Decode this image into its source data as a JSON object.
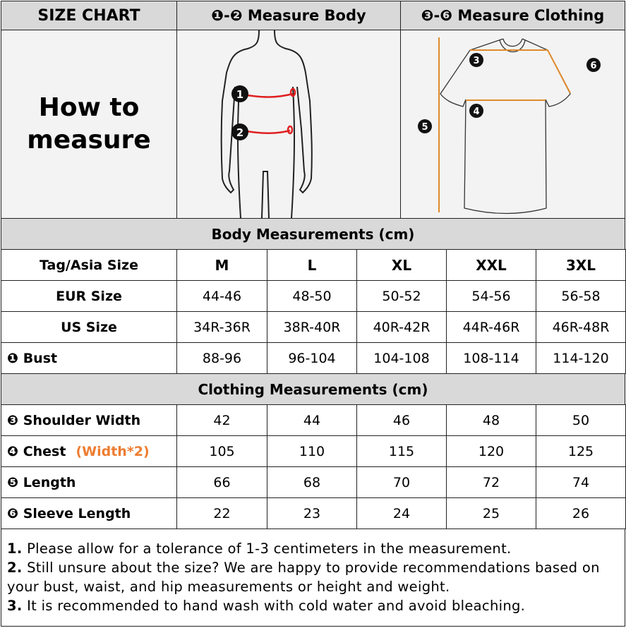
{
  "header": {
    "title": "SIZE CHART",
    "body_title": "❶-❷ Measure Body",
    "clothing_title": "❸-❻ Measure Clothing"
  },
  "how_to": {
    "line1": "How to",
    "line2": "measure"
  },
  "body_section": {
    "title": "Body Measurements (cm)",
    "rows": [
      {
        "label": "Tag/Asia Size",
        "values": [
          "M",
          "L",
          "XL",
          "XXL",
          "3XL"
        ]
      },
      {
        "label": "EUR Size",
        "values": [
          "44-46",
          "48-50",
          "50-52",
          "54-56",
          "56-58"
        ]
      },
      {
        "label": "US Size",
        "values": [
          "34R-36R",
          "38R-40R",
          "40R-42R",
          "44R-46R",
          "46R-48R"
        ]
      },
      {
        "label": "❶ Bust",
        "values": [
          "88-96",
          "96-104",
          "104-108",
          "108-114",
          "114-120"
        ]
      }
    ]
  },
  "clothing_section": {
    "title": "Clothing Measurements  (cm)",
    "rows": [
      {
        "label": "❸ Shoulder Width",
        "note": "",
        "values": [
          "42",
          "44",
          "46",
          "48",
          "50"
        ]
      },
      {
        "label": "❹ Chest",
        "note": "(Width*2)",
        "values": [
          "105",
          "110",
          "115",
          "120",
          "125"
        ]
      },
      {
        "label": "❺ Length",
        "note": "",
        "values": [
          "66",
          "68",
          "70",
          "72",
          "74"
        ]
      },
      {
        "label": "❻ Sleeve Length",
        "note": "",
        "values": [
          "22",
          "23",
          "24",
          "25",
          "26"
        ]
      }
    ]
  },
  "notes": [
    {
      "num": "1.",
      "text": " Please allow for a tolerance of 1-3 centimeters in the measurement."
    },
    {
      "num": "2.",
      "text": " Still unsure about the size? We are happy to provide recommendations based on your bust, waist, and hip measurements or height and weight."
    },
    {
      "num": "3.",
      "text": " It is recommended to hand wash with cold water and avoid bleaching."
    }
  ],
  "figure_labels": {
    "body": [
      "1",
      "2"
    ],
    "shirt": [
      "3",
      "4",
      "5",
      "6"
    ]
  },
  "colors": {
    "header_bg": "#d9d9d9",
    "accent_orange": "#ed7d31",
    "measure_red": "#e02020"
  }
}
